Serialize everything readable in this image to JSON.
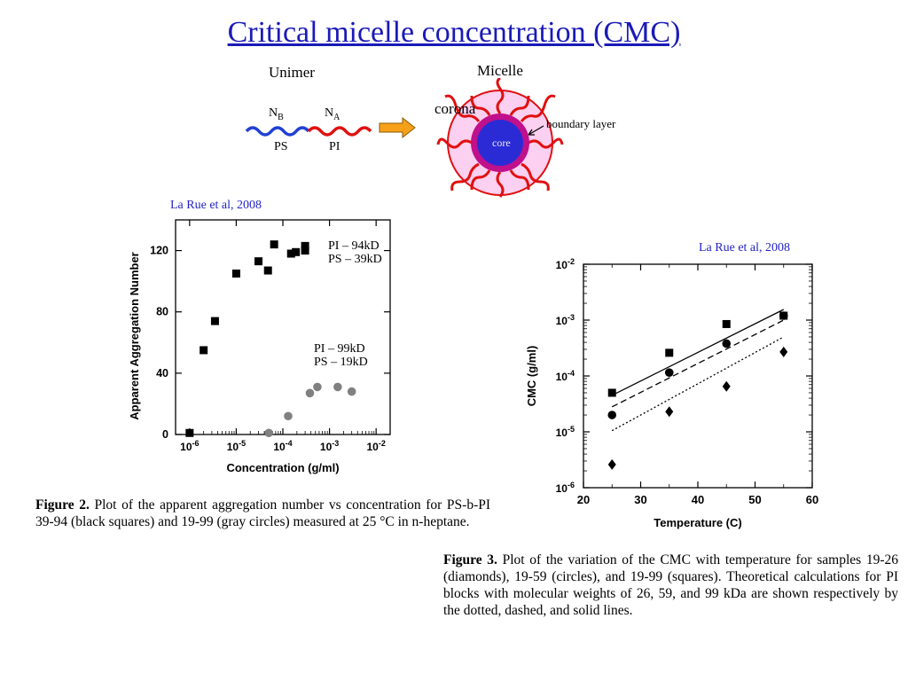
{
  "slide": {
    "title": "Critical micelle concentration (CMC)"
  },
  "schematic": {
    "unimer_label": "Unimer",
    "micelle_label": "Micelle",
    "nb_label": "N",
    "nb_sub": "B",
    "na_label": "N",
    "na_sub": "A",
    "ps_label": "PS",
    "pi_label": "PI",
    "corona_label": "corona",
    "core_label": "core",
    "boundary_label": "boundary layer",
    "colors": {
      "ps_chain": "#1f3fd6",
      "pi_chain": "#e01010",
      "corona_fill": "#fbd0f0",
      "core_fill": "#2b2bd6",
      "boundary": "#c0108c",
      "arrow": "#f7a11a"
    }
  },
  "citations": {
    "left": "La Rue et al, 2008",
    "right": "La Rue et al, 2008"
  },
  "figure2": {
    "legend_black": [
      "PI – 94kD",
      "PS – 39kD"
    ],
    "legend_gray": [
      "PI – 99kD",
      "PS – 19kD"
    ],
    "caption_label": "Figure 2.",
    "caption_text": "Plot of the apparent aggregation number vs concentration for PS-b-PI 39-94 (black squares) and 19-99 (gray circles) measured at 25 °C in n-heptane."
  },
  "figure3": {
    "caption_label": "Figure 3.",
    "caption_text": "Plot of the variation of the CMC with temperature for samples 19-26 (diamonds), 19-59 (circles), and 19-99 (squares). Theoretical calculations for PI blocks with molecular weights of 26, 59, and 99 kDa are shown respectively by the dotted, dashed, and solid lines."
  },
  "chart_data": [
    {
      "type": "scatter",
      "xlabel": "Concentration (g/ml)",
      "ylabel": "Apparent Aggregation Number",
      "xscale": "log",
      "xlim": [
        5e-07,
        0.02
      ],
      "ylim": [
        0,
        140
      ],
      "x_ticks": [
        "10^-6",
        "10^-5",
        "10^-4",
        "10^-3",
        "10^-2"
      ],
      "y_ticks": [
        0,
        40,
        80,
        120
      ],
      "grid": false,
      "series": [
        {
          "marker": "square",
          "color": "#000000",
          "points": [
            [
              1e-06,
              1
            ],
            [
              2e-06,
              55
            ],
            [
              3.5e-06,
              74
            ],
            [
              1e-05,
              105
            ],
            [
              3e-05,
              113
            ],
            [
              4.8e-05,
              107
            ],
            [
              6.5e-05,
              124
            ],
            [
              0.00015,
              118
            ],
            [
              0.00019,
              119
            ],
            [
              0.0003,
              123
            ],
            [
              0.0003,
              120
            ]
          ]
        },
        {
          "marker": "circle",
          "color": "#808080",
          "points": [
            [
              5e-05,
              1
            ],
            [
              0.00013,
              12
            ],
            [
              0.00038,
              27
            ],
            [
              0.00055,
              31
            ],
            [
              0.0015,
              31
            ],
            [
              0.003,
              28
            ]
          ]
        }
      ]
    },
    {
      "type": "scatter",
      "xlabel": "Temperature (C)",
      "ylabel": "CMC (g/ml)",
      "yscale": "log",
      "xlim": [
        20,
        60
      ],
      "ylim": [
        1e-06,
        0.01
      ],
      "x_ticks": [
        20,
        30,
        40,
        50,
        60
      ],
      "y_ticks": [
        "10^-6",
        "10^-5",
        "10^-4",
        "10^-3",
        "10^-2"
      ],
      "grid": false,
      "series": [
        {
          "marker": "square",
          "points": [
            [
              25,
              5e-05
            ],
            [
              35,
              0.00026
            ],
            [
              45,
              0.00085
            ],
            [
              55,
              0.0012
            ]
          ]
        },
        {
          "marker": "circle",
          "points": [
            [
              25,
              2e-05
            ],
            [
              35,
              0.000115
            ],
            [
              45,
              0.00038
            ],
            [
              55,
              0.0012
            ]
          ]
        },
        {
          "marker": "diamond",
          "points": [
            [
              25,
              2.6e-06
            ],
            [
              35,
              2.3e-05
            ],
            [
              45,
              6.5e-05
            ],
            [
              55,
              0.00027
            ]
          ]
        }
      ],
      "lines": [
        {
          "style": "solid",
          "points": [
            [
              25,
              4.5e-05
            ],
            [
              55,
              0.00155
            ]
          ]
        },
        {
          "style": "dashed",
          "points": [
            [
              25,
              2.8e-05
            ],
            [
              55,
              0.001
            ]
          ]
        },
        {
          "style": "dotted",
          "points": [
            [
              25,
              1.05e-05
            ],
            [
              55,
              0.0005
            ]
          ]
        }
      ]
    }
  ]
}
